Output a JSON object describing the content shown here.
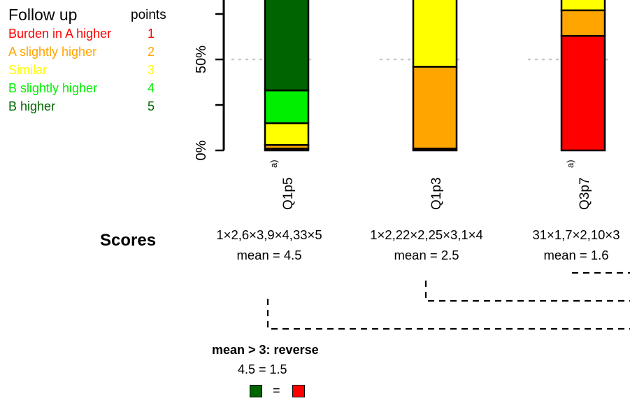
{
  "legend": {
    "title": "Follow up",
    "points_header": "points",
    "items": [
      {
        "label": "Burden in A higher",
        "points": "1",
        "color": "#ff0000"
      },
      {
        "label": "A slightly higher",
        "points": "2",
        "color": "#ffa500"
      },
      {
        "label": "Similar",
        "points": "3",
        "color": "#ffff00"
      },
      {
        "label": "B slightly higher",
        "points": "4",
        "color": "#00ee00"
      },
      {
        "label": "B higher",
        "points": "5",
        "color": "#006400"
      }
    ]
  },
  "axis": {
    "ticks": [
      "0%",
      "50%"
    ]
  },
  "chart_data": {
    "type": "bar",
    "stacked": true,
    "categories": [
      "Q1p5",
      "Q1p3",
      "Q3p7"
    ],
    "category_superscripts": [
      "a)",
      "",
      "a)"
    ],
    "ylim": [
      0,
      100
    ],
    "reference_line": 50,
    "series": [
      {
        "name": "Burden in A higher",
        "color": "#ff0000",
        "values": [
          1,
          1,
          63
        ]
      },
      {
        "name": "A slightly higher",
        "color": "#ffa500",
        "values": [
          2,
          45,
          14
        ]
      },
      {
        "name": "Similar",
        "color": "#ffff00",
        "values": [
          12,
          49,
          21
        ]
      },
      {
        "name": "B slightly higher",
        "color": "#00ee00",
        "values": [
          18,
          2,
          2
        ]
      },
      {
        "name": "B higher",
        "color": "#006400",
        "values": [
          67,
          3,
          0
        ]
      }
    ]
  },
  "scores": {
    "heading": "Scores",
    "columns": [
      {
        "counts": "1×2,6×3,9×4,33×5",
        "mean": "mean = 4.5"
      },
      {
        "counts": "1×2,22×2,25×3,1×4",
        "mean": "mean = 2.5"
      },
      {
        "counts": "31×1,7×2,10×3",
        "mean": "mean = 1.6"
      }
    ]
  },
  "rule": {
    "title": "mean > 3: reverse",
    "equation": "4.5 = 1.5",
    "equals": "=",
    "swatch_left_color": "#006400",
    "swatch_right_color": "#ff0000"
  }
}
